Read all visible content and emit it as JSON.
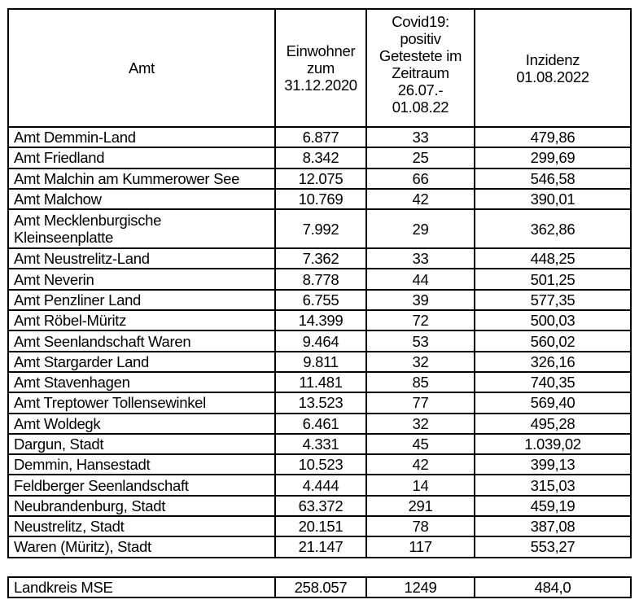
{
  "headers": {
    "amt": "Amt",
    "einwohner": [
      "Einwohner",
      "zum",
      "31.12.2020"
    ],
    "covid": [
      "Covid19:",
      "positiv",
      "Getestete im",
      "Zeitraum",
      "26.07.-",
      "01.08.22"
    ],
    "inzidenz": [
      "Inzidenz",
      "01.08.2022"
    ]
  },
  "rows": [
    {
      "amt": [
        "Amt Demmin-Land"
      ],
      "einwohner": "6.877",
      "positiv": "33",
      "inzidenz": "479,86"
    },
    {
      "amt": [
        "Amt Friedland"
      ],
      "einwohner": "8.342",
      "positiv": "25",
      "inzidenz": "299,69"
    },
    {
      "amt": [
        "Amt Malchin am Kummerower See"
      ],
      "einwohner": "12.075",
      "positiv": "66",
      "inzidenz": "546,58"
    },
    {
      "amt": [
        "Amt Malchow"
      ],
      "einwohner": "10.769",
      "positiv": "42",
      "inzidenz": "390,01"
    },
    {
      "amt": [
        "Amt Mecklenburgische",
        "Kleinseenplatte"
      ],
      "einwohner": "7.992",
      "positiv": "29",
      "inzidenz": "362,86"
    },
    {
      "amt": [
        "Amt Neustrelitz-Land"
      ],
      "einwohner": "7.362",
      "positiv": "33",
      "inzidenz": "448,25"
    },
    {
      "amt": [
        "Amt Neverin"
      ],
      "einwohner": "8.778",
      "positiv": "44",
      "inzidenz": "501,25"
    },
    {
      "amt": [
        "Amt Penzliner Land"
      ],
      "einwohner": "6.755",
      "positiv": "39",
      "inzidenz": "577,35"
    },
    {
      "amt": [
        "Amt Röbel-Müritz"
      ],
      "einwohner": "14.399",
      "positiv": "72",
      "inzidenz": "500,03"
    },
    {
      "amt": [
        "Amt Seenlandschaft Waren"
      ],
      "einwohner": "9.464",
      "positiv": "53",
      "inzidenz": "560,02"
    },
    {
      "amt": [
        "Amt Stargarder Land"
      ],
      "einwohner": "9.811",
      "positiv": "32",
      "inzidenz": "326,16"
    },
    {
      "amt": [
        "Amt Stavenhagen"
      ],
      "einwohner": "11.481",
      "positiv": "85",
      "inzidenz": "740,35"
    },
    {
      "amt": [
        "Amt Treptower Tollensewinkel"
      ],
      "einwohner": "13.523",
      "positiv": "77",
      "inzidenz": "569,40"
    },
    {
      "amt": [
        "Amt Woldegk"
      ],
      "einwohner": "6.461",
      "positiv": "32",
      "inzidenz": "495,28"
    },
    {
      "amt": [
        "Dargun, Stadt"
      ],
      "einwohner": "4.331",
      "positiv": "45",
      "inzidenz": "1.039,02"
    },
    {
      "amt": [
        "Demmin, Hansestadt"
      ],
      "einwohner": "10.523",
      "positiv": "42",
      "inzidenz": "399,13"
    },
    {
      "amt": [
        "Feldberger Seenlandschaft"
      ],
      "einwohner": "4.444",
      "positiv": "14",
      "inzidenz": "315,03"
    },
    {
      "amt": [
        "Neubrandenburg, Stadt"
      ],
      "einwohner": "63.372",
      "positiv": "291",
      "inzidenz": "459,19"
    },
    {
      "amt": [
        "Neustrelitz, Stadt"
      ],
      "einwohner": "20.151",
      "positiv": "78",
      "inzidenz": "387,08"
    },
    {
      "amt": [
        "Waren (Müritz), Stadt"
      ],
      "einwohner": "21.147",
      "positiv": "117",
      "inzidenz": "553,27"
    }
  ],
  "total": {
    "amt": "Landkreis MSE",
    "einwohner": "258.057",
    "positiv": "1249",
    "inzidenz": "484,0"
  }
}
